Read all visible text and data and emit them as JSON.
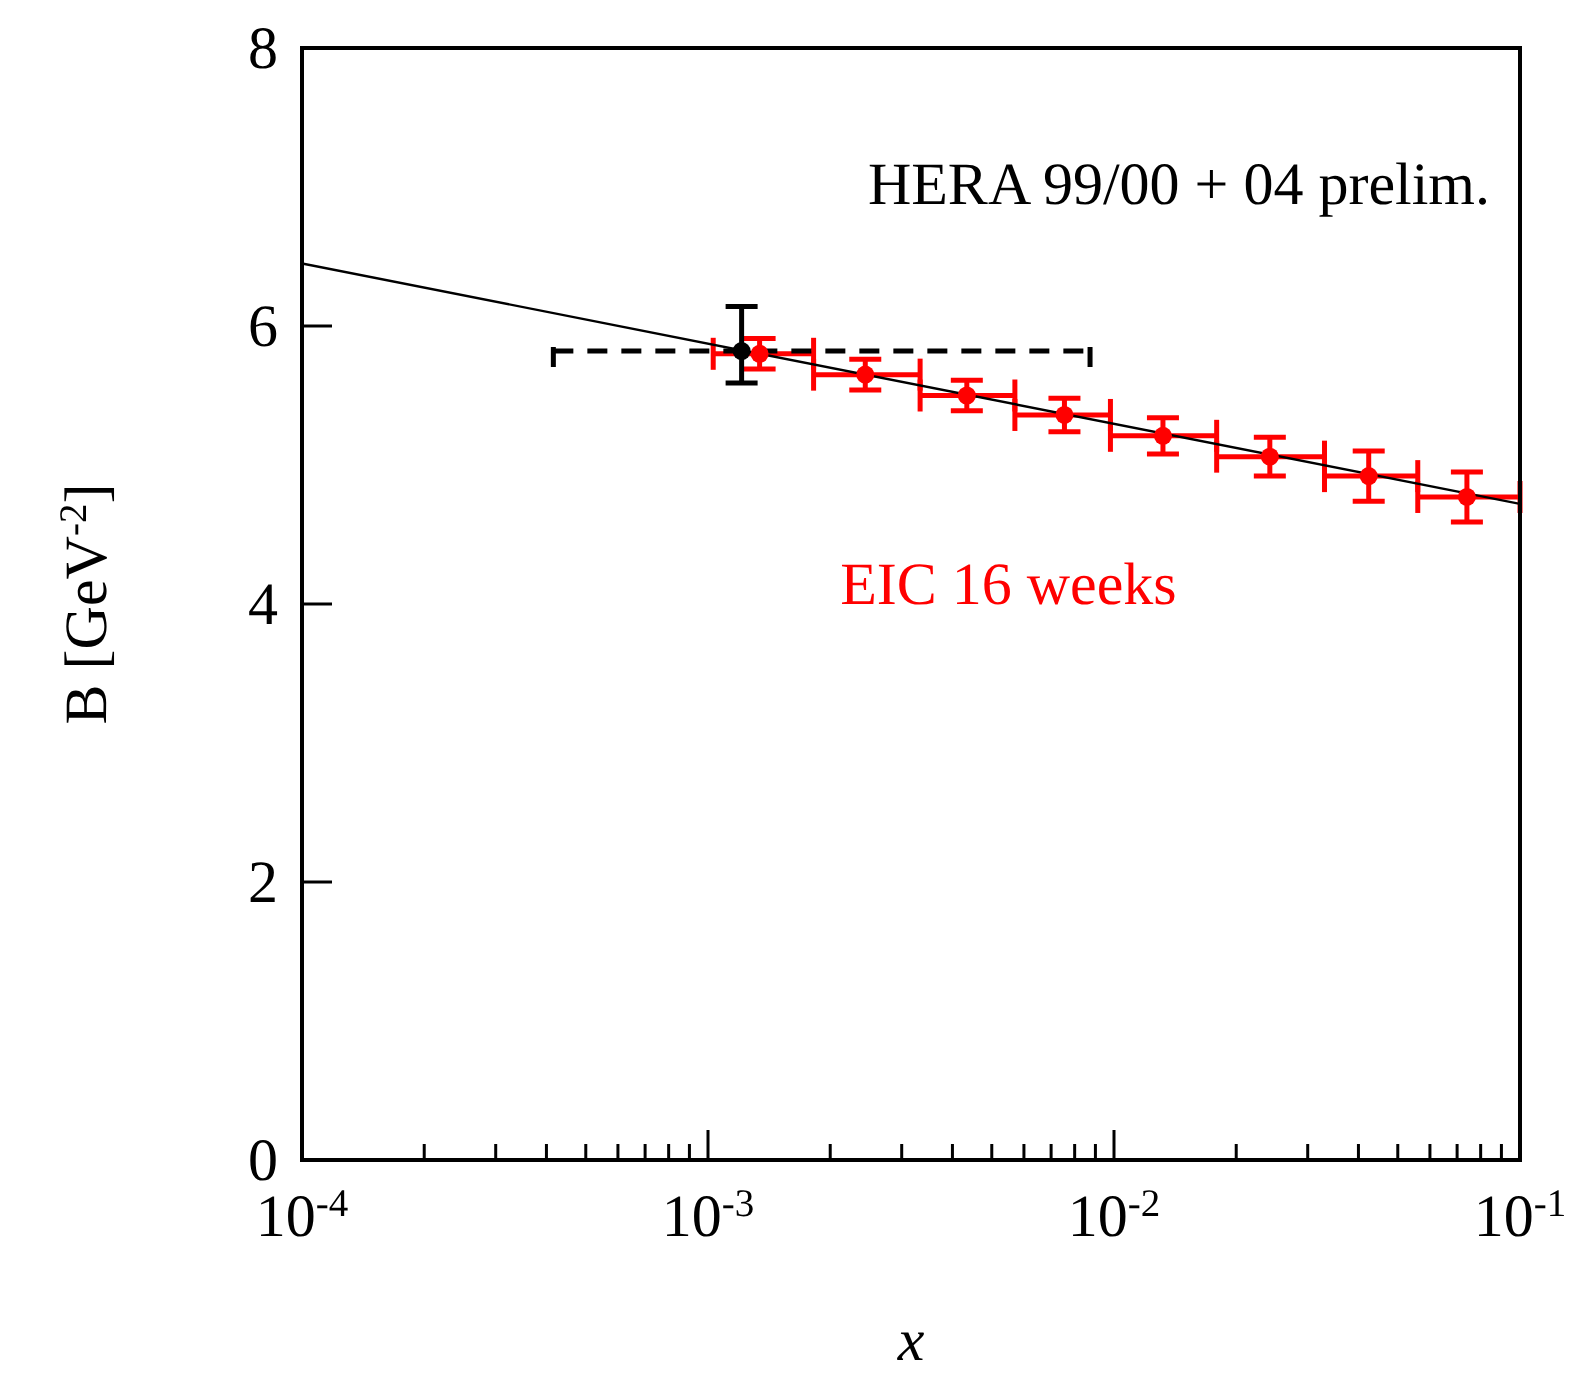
{
  "chart_data": {
    "type": "scatter",
    "xlabel": "x",
    "ylabel": "B  [GeV$^{-2}$]",
    "log": "x",
    "marker": "circle",
    "xlim": [
      0.0001,
      0.1
    ],
    "ylim": [
      0,
      8
    ],
    "xticks": [
      {
        "value": 0.0001,
        "label": "10$^{-4}$"
      },
      {
        "value": 0.0002,
        "label": null
      },
      {
        "value": 0.0003,
        "label": null
      },
      {
        "value": 0.0004,
        "label": null
      },
      {
        "value": 0.0005,
        "label": null
      },
      {
        "value": 0.0006,
        "label": null
      },
      {
        "value": 0.0007,
        "label": null
      },
      {
        "value": 0.0008,
        "label": null
      },
      {
        "value": 0.0009,
        "label": null
      },
      {
        "value": 0.001,
        "label": "10$^{-3}$"
      },
      {
        "value": 0.002,
        "label": null
      },
      {
        "value": 0.003,
        "label": null
      },
      {
        "value": 0.004,
        "label": null
      },
      {
        "value": 0.005,
        "label": null
      },
      {
        "value": 0.006,
        "label": null
      },
      {
        "value": 0.007,
        "label": null
      },
      {
        "value": 0.008,
        "label": null
      },
      {
        "value": 0.009,
        "label": null
      },
      {
        "value": 0.01,
        "label": "10$^{-2}$"
      },
      {
        "value": 0.02,
        "label": null
      },
      {
        "value": 0.03,
        "label": null
      },
      {
        "value": 0.04,
        "label": null
      },
      {
        "value": 0.05,
        "label": null
      },
      {
        "value": 0.06,
        "label": null
      },
      {
        "value": 0.07,
        "label": null
      },
      {
        "value": 0.08,
        "label": null
      },
      {
        "value": 0.09,
        "label": null
      },
      {
        "value": 0.1,
        "label": "10$^{-1}$"
      }
    ],
    "yticks": [
      0,
      2,
      4,
      6,
      8
    ],
    "series": [
      {
        "name": "EIC 16 weeks",
        "color": "#ff0000",
        "x": [
          0.00134,
          0.00244,
          0.00434,
          0.00755,
          0.0132,
          0.0242,
          0.0424,
          0.074
        ],
        "values": [
          5.8,
          5.65,
          5.5,
          5.36,
          5.21,
          5.06,
          4.92,
          4.77
        ],
        "errors": [
          0.11,
          0.11,
          0.11,
          0.12,
          0.13,
          0.14,
          0.18,
          0.18
        ],
        "xerrors": [
          [
            0.00103,
            0.00182
          ],
          [
            0.00182,
            0.00333
          ],
          [
            0.00333,
            0.0057
          ],
          [
            0.0057,
            0.0098
          ],
          [
            0.0098,
            0.0179
          ],
          [
            0.0179,
            0.033
          ],
          [
            0.033,
            0.056
          ],
          [
            0.056,
            0.1
          ]
        ]
      },
      {
        "name": "HERA 99/00 + 04 prelim.",
        "color": "#000000",
        "x": [
          0.00121
        ],
        "values": [
          5.82
        ],
        "errors": [
          [
            5.59,
            6.14
          ]
        ],
        "xerrors": [
          [
            0.000416,
            0.00873
          ]
        ]
      },
      {
        "type": "line",
        "color": "#000000",
        "x": [
          0.0001,
          0.1
        ],
        "values": [
          6.45,
          4.72
        ],
        "marker": "none"
      }
    ]
  }
}
